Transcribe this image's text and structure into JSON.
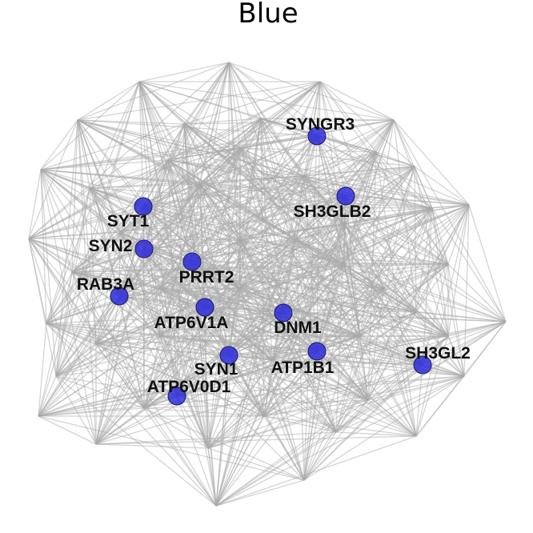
{
  "title": "Blue",
  "colors": {
    "node": "#2222dd",
    "edge": "#a9a9a9"
  },
  "hub_genes": [
    "SYNGR3",
    "SH3GLB2",
    "SYT1",
    "SYN2",
    "PRRT2",
    "RAB3A",
    "ATP6V1A",
    "DNM1",
    "SYN1",
    "ATP1B1",
    "SH3GL2",
    "ATP6V0D1"
  ]
}
